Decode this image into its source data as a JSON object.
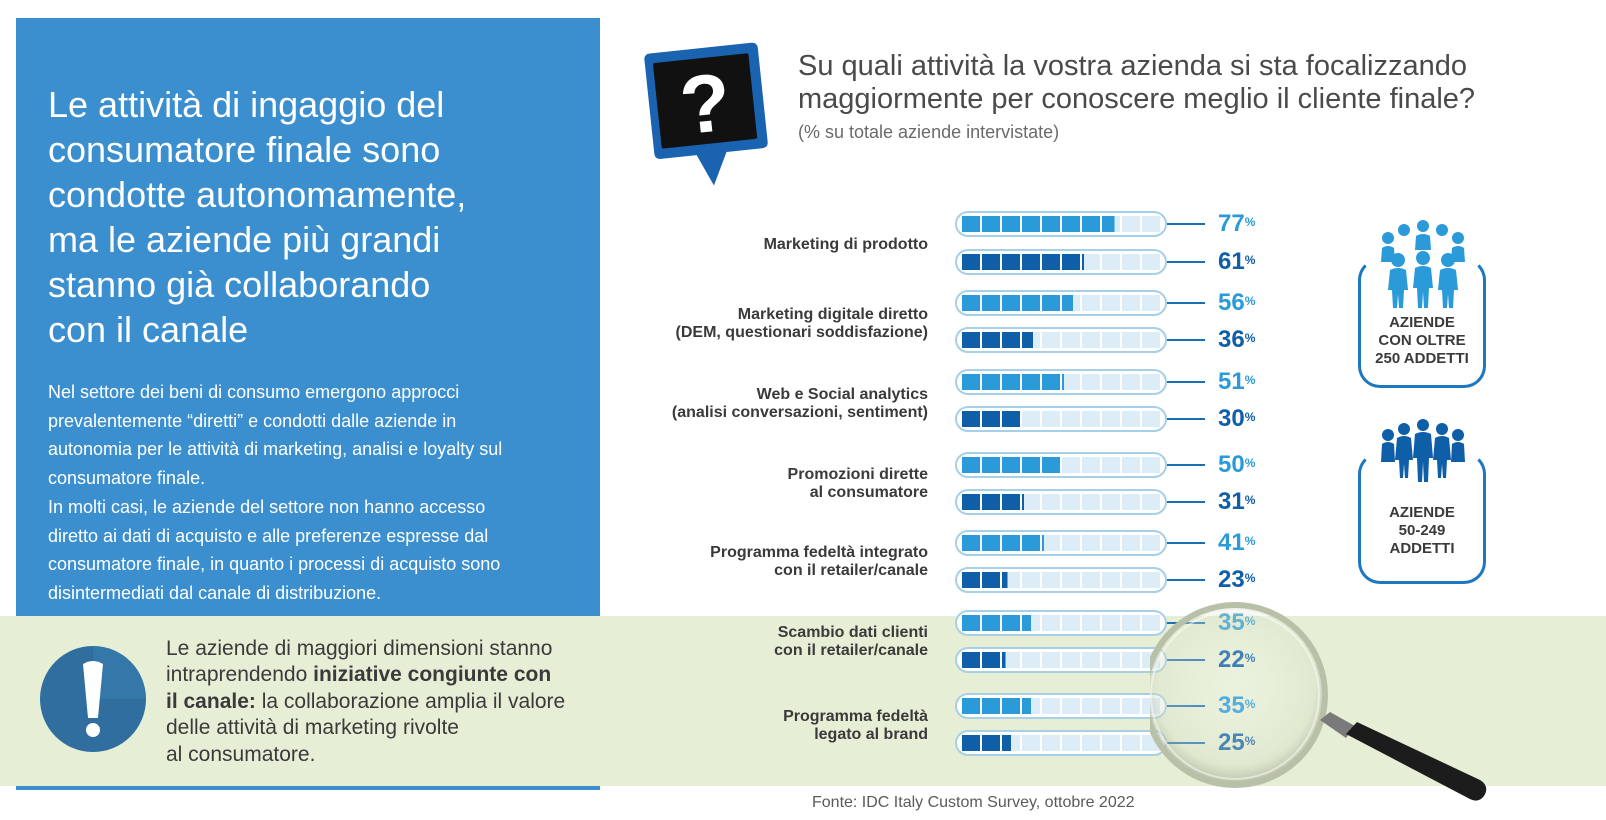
{
  "headline": [
    "Le attività di ingaggio del",
    "consumatore finale sono",
    "condotte autonomamente,",
    "ma le aziende più grandi",
    "stanno già collaborando",
    "con il canale"
  ],
  "body": [
    "Nel settore dei beni di consumo emergono approcci",
    "prevalentemente “diretti” e condotti dalle aziende in",
    "autonomia per le attività di marketing, analisi e loyalty sul",
    "consumatore finale.",
    "In molti casi, le aziende del settore non hanno accesso",
    "diretto ai dati di acquisto e alle preferenze espresse dal",
    "consumatore finale, in quanto i processi di acquisto sono",
    "disintermediati dal canale di distribuzione."
  ],
  "callout": {
    "line1": "Le aziende di maggiori dimensioni stanno",
    "line2_plain": "intraprendendo ",
    "line2_bold": "iniziative congiunte con",
    "line3_bold": "il canale:",
    "line3_plain": " la collaborazione amplia il valore",
    "line4": "delle attività di marketing rivolte",
    "line5": "al consumatore."
  },
  "question": {
    "title_line1": "Su quali attività la vostra azienda si sta focalizzando",
    "title_line2": "maggiormente per conoscere meglio il cliente finale?",
    "subtitle": "(% su totale aziende intervistate)"
  },
  "source": "Fonte: IDC Italy Custom Survey, ottobre 2022",
  "chart_data": {
    "type": "bar",
    "unit": "%",
    "categories": [
      [
        "Marketing di prodotto"
      ],
      [
        "Marketing digitale diretto",
        "(DEM, questionari soddisfazione)"
      ],
      [
        "Web e Social analytics",
        "(analisi conversazioni, sentiment)"
      ],
      [
        "Promozioni dirette",
        "al consumatore"
      ],
      [
        "Programma fedeltà integrato",
        "con il retailer/canale"
      ],
      [
        "Scambio dati clienti",
        "con il retailer/canale"
      ],
      [
        "Programma fedeltà",
        "legato al brand"
      ]
    ],
    "series": [
      {
        "name": "AZIENDE CON OLTRE 250 ADDETTI",
        "color": "#2a9bd8",
        "values": [
          77,
          56,
          51,
          50,
          41,
          35,
          35
        ]
      },
      {
        "name": "AZIENDE 50-249 ADDETTI",
        "color": "#0f5ea8",
        "values": [
          61,
          36,
          30,
          31,
          23,
          22,
          25
        ]
      }
    ],
    "ylim": [
      0,
      100
    ],
    "segments": 10
  },
  "groups": [
    {
      "label": [
        "AZIENDE",
        "CON OLTRE",
        "250 ADDETTI"
      ]
    },
    {
      "label": [
        "AZIENDE",
        "50-249",
        "ADDETTI"
      ]
    }
  ],
  "colors": {
    "panel": "#3b8fcf",
    "band": "#e6efd6",
    "large": "#2a9bd8",
    "small": "#0f5ea8",
    "empty": "#dcedf7"
  },
  "icons": [
    "question-icon",
    "exclamation-icon",
    "people-group-large-icon",
    "people-group-small-icon",
    "magnifying-glass-icon"
  ]
}
